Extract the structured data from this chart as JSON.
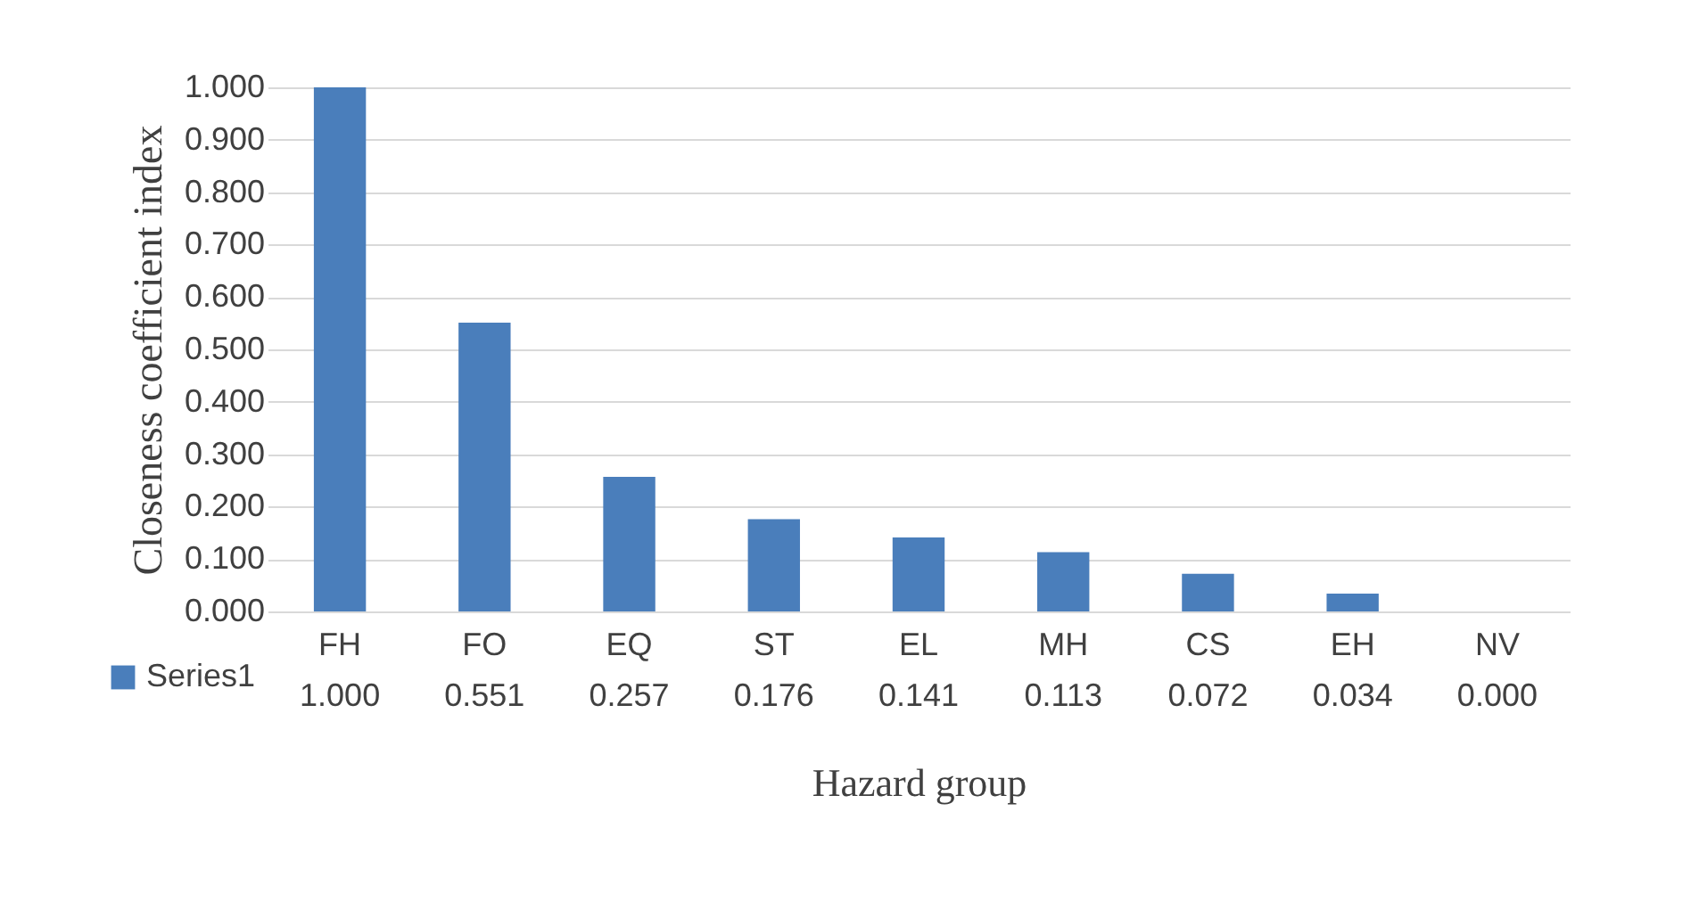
{
  "chart_data": {
    "type": "bar",
    "xlabel": "Hazard group",
    "ylabel": "Closeness coefficient index",
    "categories": [
      "FH",
      "FO",
      "EQ",
      "ST",
      "EL",
      "MH",
      "CS",
      "EH",
      "NV"
    ],
    "series": [
      {
        "name": "Series1",
        "color": "#4a7ebb",
        "values": [
          1.0,
          0.551,
          0.257,
          0.176,
          0.141,
          0.113,
          0.072,
          0.034,
          0.0
        ]
      }
    ],
    "ylim": [
      0,
      1
    ],
    "yticks": [
      {
        "value": 0,
        "label": "0.000"
      },
      {
        "value": 0.1,
        "label": "0.100"
      },
      {
        "value": 0.2,
        "label": "0.200"
      },
      {
        "value": 0.3,
        "label": "0.300"
      },
      {
        "value": 0.4,
        "label": "0.400"
      },
      {
        "value": 0.5,
        "label": "0.500"
      },
      {
        "value": 0.6,
        "label": "0.600"
      },
      {
        "value": 0.7,
        "label": "0.700"
      },
      {
        "value": 0.8,
        "label": "0.800"
      },
      {
        "value": 0.9,
        "label": "0.900"
      },
      {
        "value": 1,
        "label": "1.000"
      }
    ],
    "grid": "y",
    "legend": "bottom left",
    "value_labels": [
      "1.000",
      "0.551",
      "0.257",
      "0.176",
      "0.141",
      "0.113",
      "0.072",
      "0.034",
      "0.000"
    ]
  }
}
